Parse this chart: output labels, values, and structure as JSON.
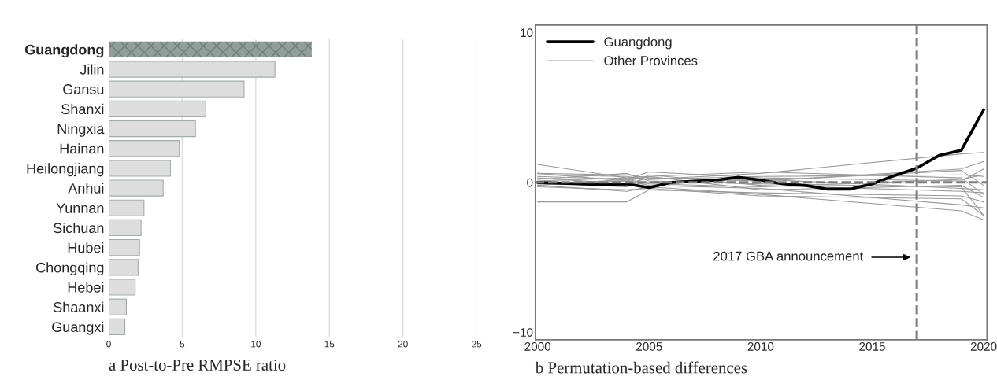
{
  "chart_data": [
    {
      "type": "bar",
      "orientation": "horizontal",
      "title": "a Post-to-Pre RMPSE ratio",
      "categories": [
        "Guangdong",
        "Jilin",
        "Gansu",
        "Shanxi",
        "Ningxia",
        "Hainan",
        "Heilongjiang",
        "Anhui",
        "Yunnan",
        "Sichuan",
        "Hubei",
        "Chongqing",
        "Hebei",
        "Shaanxi",
        "Guangxi"
      ],
      "values": [
        13.8,
        11.3,
        9.2,
        6.6,
        5.9,
        4.8,
        4.2,
        3.7,
        2.4,
        2.2,
        2.1,
        2.0,
        1.8,
        1.2,
        1.1
      ],
      "colors": [
        "#919e9a",
        "#dddddd",
        "#dddddd",
        "#dddddd",
        "#dddddd",
        "#dddddd",
        "#dddddd",
        "#dddddd",
        "#dddddd",
        "#dddddd",
        "#dddddd",
        "#dddddd",
        "#dddddd",
        "#dddddd",
        "#dddddd"
      ],
      "xlim": [
        0,
        25
      ],
      "xticks": [
        0,
        5,
        10,
        15,
        20,
        25
      ],
      "grid": "x"
    },
    {
      "type": "line",
      "title": "b Permutation-based differences",
      "xlim": [
        1999.9,
        2020.15
      ],
      "xticks": [
        2000,
        2005,
        2010,
        2015,
        2020
      ],
      "ylim": [
        -10.5,
        10.5
      ],
      "yticks": [
        -10,
        0,
        10
      ],
      "legend": "top left",
      "grid": false,
      "ref_lines": [
        {
          "axis": "y",
          "value": 0,
          "color": "#7f7f7f",
          "line_style": "dashed"
        },
        {
          "axis": "x",
          "value": 2017,
          "color": "#7f7f7f",
          "line_style": "dashed"
        }
      ],
      "annotations": [
        "2017 GBA announcement"
      ],
      "series": [
        {
          "name": "Guangdong",
          "color": "#000000",
          "x": [
            2000,
            2003,
            2004,
            2005,
            2006,
            2008,
            2009,
            2010,
            2011,
            2012,
            2013,
            2014,
            2015,
            2016,
            2017,
            2018,
            2019,
            2020
          ],
          "values": [
            0,
            -0.15,
            -0.1,
            -0.35,
            0,
            0.15,
            0.35,
            0.15,
            -0.1,
            -0.2,
            -0.45,
            -0.45,
            -0.1,
            0.45,
            0.95,
            1.8,
            2.15,
            4.85
          ]
        },
        {
          "name": "Other Provinces",
          "color": "#999999",
          "x": [
            2000,
            2004,
            2005,
            2010,
            2019,
            2020
          ],
          "values": [
            1.2,
            0.3,
            0.2,
            0.6,
            1.9,
            2.0
          ]
        },
        {
          "color": "#999999",
          "x": [
            2000,
            2004,
            2005,
            2010,
            2019,
            2020
          ],
          "values": [
            -1.3,
            -1.3,
            -0.5,
            -0.7,
            -0.9,
            -1.3
          ]
        },
        {
          "color": "#999999",
          "x": [
            2000,
            2004,
            2005,
            2010,
            2019,
            2020
          ],
          "values": [
            0.6,
            0.5,
            0.3,
            0.1,
            0.9,
            1.4
          ]
        },
        {
          "color": "#999999",
          "x": [
            2000,
            2004,
            2005,
            2010,
            2019,
            2020
          ],
          "values": [
            0.4,
            0.2,
            0.7,
            0.3,
            0.1,
            0.9
          ]
        },
        {
          "color": "#999999",
          "x": [
            2000,
            2004,
            2005,
            2010,
            2019,
            2020
          ],
          "values": [
            0.2,
            0.6,
            0.1,
            -0.1,
            -0.3,
            -2.2
          ]
        },
        {
          "color": "#999999",
          "x": [
            2000,
            2004,
            2005,
            2010,
            2019,
            2020
          ],
          "values": [
            -0.2,
            -0.6,
            -0.3,
            -0.8,
            -1.9,
            -2.5
          ]
        },
        {
          "color": "#999999",
          "x": [
            2000,
            2004,
            2005,
            2010,
            2019,
            2020
          ],
          "values": [
            0,
            -0.3,
            0.5,
            -0.2,
            -0.6,
            -0.7
          ]
        },
        {
          "color": "#999999",
          "x": [
            2000,
            2004,
            2005,
            2010,
            2019,
            2020
          ],
          "values": [
            0.5,
            0.4,
            0.2,
            0.4,
            0.5,
            0.4
          ]
        },
        {
          "color": "#999999",
          "x": [
            2000,
            2004,
            2005,
            2010,
            2019,
            2020
          ],
          "values": [
            -0.1,
            0.1,
            -0.2,
            -0.4,
            -1.5,
            -1.7
          ]
        },
        {
          "color": "#999999",
          "x": [
            2000,
            2004,
            2005,
            2010,
            2019,
            2020
          ],
          "values": [
            0.3,
            -0.1,
            0.3,
            0.1,
            0.8,
            -0.2
          ]
        },
        {
          "color": "#999999",
          "x": [
            2000,
            2004,
            2005,
            2010,
            2019,
            2020
          ],
          "values": [
            -0.3,
            -0.5,
            -0.4,
            -0.9,
            -1.1,
            -2.2
          ]
        },
        {
          "color": "#999999",
          "x": [
            2000,
            2004,
            2005,
            2010,
            2019,
            2020
          ],
          "values": [
            0.1,
            0.3,
            0.4,
            -0.5,
            -0.2,
            -1.0
          ]
        },
        {
          "color": "#999999",
          "x": [
            2000,
            2004,
            2005,
            2010,
            2019,
            2020
          ],
          "values": [
            -0.1,
            -0.2,
            0,
            0.2,
            -0.4,
            -0.5
          ]
        },
        {
          "color": "#999999",
          "x": [
            2000,
            2004,
            2005,
            2010,
            2019,
            2020
          ],
          "values": [
            0.6,
            0.1,
            0.4,
            0.7,
            0.3,
            -0.8
          ]
        },
        {
          "color": "#999999",
          "x": [
            2000,
            2004,
            2005,
            2010,
            2019,
            2020
          ],
          "values": [
            -0.2,
            0.2,
            -0.1,
            -0.3,
            0.2,
            0.5
          ]
        }
      ]
    }
  ]
}
